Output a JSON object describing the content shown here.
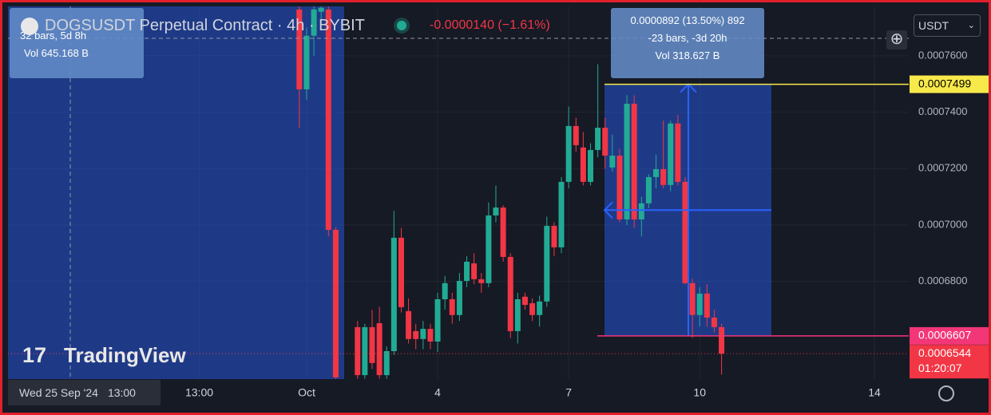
{
  "chart_data": {
    "type": "candlestick",
    "title": "DOGSUSDT Perpetual Contract · 4h · BYBIT",
    "change": "-0.0000140 (−1.61%)",
    "up_color": "#22ab94",
    "down_color": "#f23645",
    "x": [
      0.833,
      1,
      1.167,
      1.333,
      1.5,
      1.667,
      2.167,
      2.333,
      2.5,
      2.667,
      2.833,
      3,
      3.167,
      3.333,
      3.5,
      3.667,
      3.833,
      4,
      4.167,
      4.333,
      4.5,
      4.667,
      4.833,
      5,
      5.167,
      5.333,
      5.5,
      5.667,
      5.833,
      6,
      6.167,
      6.333,
      6.5,
      6.667,
      6.833,
      7,
      7.167,
      7.333,
      7.5,
      7.667,
      7.833,
      8,
      8.167,
      8.333,
      8.5,
      8.667,
      8.833,
      9,
      9.167,
      9.333,
      9.5,
      9.667,
      9.833,
      10,
      10.167,
      10.333,
      10.5
    ],
    "open": [
      0.0007764,
      0.0007481,
      0.0007671,
      0.0007756,
      0.0007764,
      0.0006983,
      0.0006638,
      0.0006468,
      0.0006638,
      0.0006652,
      0.0006468,
      0.0006553,
      0.0006955,
      0.0006695,
      0.0006624,
      0.0006596,
      0.0006632,
      0.0006587,
      0.0006737,
      0.0006737,
      0.0006681,
      0.0006802,
      0.0006864,
      0.0006808,
      0.0006794,
      0.0007034,
      0.0007062,
      0.0006887,
      0.0006624,
      0.0006746,
      0.0006723,
      0.0006681,
      0.0006729,
      0.0006997,
      0.0006921,
      0.0007153,
      0.0007351,
      0.0007275,
      0.0007153,
      0.0007266,
      0.0007345,
      0.0007204,
      0.0007246,
      0.000702,
      0.000743,
      0.000702,
      0.0007077,
      0.000717,
      0.0007198,
      0.0007142,
      0.000736,
      0.0007153,
      0.0006794,
      0.0006681,
      0.0006757,
      0.0006672,
      0.0006638
    ],
    "high": [
      0.0007775,
      0.00077,
      0.0007775,
      0.0007775,
      0.0007775,
      0.0006992,
      0.000666,
      0.000665,
      0.00067,
      0.000671,
      0.000657,
      0.000705,
      0.000699,
      0.000674,
      0.000665,
      0.000666,
      0.000665,
      0.000676,
      0.000682,
      0.000676,
      0.000683,
      0.000689,
      0.00069,
      0.000683,
      0.000708,
      0.000714,
      0.000707,
      0.00069,
      0.000676,
      0.000676,
      0.000674,
      0.000675,
      0.000703,
      0.000701,
      0.000717,
      0.000742,
      0.000738,
      0.000733,
      0.000729,
      0.000757,
      0.000738,
      0.000732,
      0.000727,
      0.000746,
      0.000746,
      0.00071,
      0.000718,
      0.000725,
      0.000737,
      0.000737,
      0.000739,
      0.000717,
      0.000681,
      0.000678,
      0.000679,
      0.00067,
      0.000665
    ],
    "low": [
      0.0007345,
      0.0007444,
      0.00076,
      0.000772,
      0.000696,
      0.0006455,
      0.0006455,
      0.0006455,
      0.000649,
      0.0006455,
      0.0006455,
      0.000654,
      0.000669,
      0.000658,
      0.000656,
      0.000656,
      0.000656,
      0.000655,
      0.00067,
      0.000665,
      0.000666,
      0.000678,
      0.000679,
      0.000676,
      0.000678,
      0.000701,
      0.000687,
      0.00066,
      0.000658,
      0.00067,
      0.000666,
      0.000664,
      0.000671,
      0.000689,
      0.00069,
      0.000713,
      0.000726,
      0.000714,
      0.000714,
      0.000724,
      0.00072,
      0.000719,
      0.000701,
      0.0007,
      0.000699,
      0.000696,
      0.000706,
      0.000713,
      0.000713,
      0.000712,
      0.000714,
      0.000679,
      0.00066,
      0.000664,
      0.000664,
      0.000662,
      0.000647
    ],
    "close": [
      0.0007481,
      0.0007671,
      0.0007764,
      0.000777,
      0.0006983,
      0.000646,
      0.0006468,
      0.0006638,
      0.0006511,
      0.0006468,
      0.0006553,
      0.0006955,
      0.0006709,
      0.0006596,
      0.0006596,
      0.0006632,
      0.0006587,
      0.0006737,
      0.0006794,
      0.0006681,
      0.0006802,
      0.000687,
      0.0006808,
      0.0006794,
      0.0007034,
      0.0007062,
      0.0006887,
      0.0006624,
      0.0006737,
      0.0006717,
      0.0006681,
      0.0006729,
      0.0006997,
      0.0006921,
      0.0007153,
      0.0007351,
      0.0007283,
      0.0007153,
      0.0007266,
      0.0007345,
      0.0007246,
      0.0007246,
      0.000702,
      0.000743,
      0.000702,
      0.0007077,
      0.000717,
      0.0007198,
      0.0007142,
      0.000736,
      0.0007153,
      0.0006794,
      0.0006681,
      0.0006757,
      0.0006672,
      0.0006638,
      0.0006544
    ],
    "xlim": [
      -5.837,
      14.786
    ],
    "ylim": [
      0.0006454,
      0.0007775
    ],
    "xticks": [
      {
        "value": -1.458,
        "label": "13:00"
      },
      {
        "value": 1,
        "label": "Oct"
      },
      4,
      7,
      10,
      14
    ],
    "yticks": [
      {
        "value": 0.00068,
        "label": "0.0006800"
      },
      {
        "value": 0.0007,
        "label": "0.0007000"
      },
      {
        "value": 0.00072,
        "label": "0.0007200"
      },
      {
        "value": 0.00074,
        "label": "0.0007400"
      },
      {
        "value": 0.00076,
        "label": "0.0007600"
      }
    ],
    "grid": true,
    "levels": [
      {
        "value": 0.0007499,
        "color": "#f7e94a"
      },
      {
        "value": 0.0006607,
        "color": "#f23678"
      }
    ],
    "last_price": {
      "value": 0.0006544,
      "countdown": "01:20:07",
      "color": "#f23645"
    }
  },
  "tooltips": [
    {
      "lines": [
        "32 bars, 5d 8h",
        "Vol 645.168 B"
      ]
    },
    {
      "lines": [
        "0.0000892 (13.50%) 892",
        "-23 bars, -3d 20h",
        "Vol 318.627 B"
      ]
    }
  ],
  "crosshair": {
    "date": "Wed 25 Sep '24",
    "time": "13:00"
  },
  "currency": "USDT",
  "watermark": "TradingView"
}
